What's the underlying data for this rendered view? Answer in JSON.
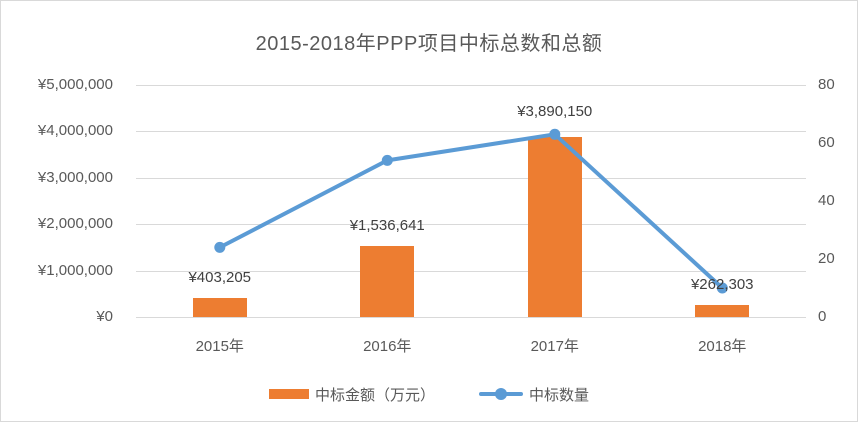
{
  "title": "2015-2018年PPP项目中标总数和总额",
  "chart_data": {
    "type": "combo",
    "categories": [
      "2015年",
      "2016年",
      "2017年",
      "2018年"
    ],
    "series": [
      {
        "name": "中标金额（万元）",
        "type": "bar",
        "axis": "left",
        "color": "#ED7D31",
        "values": [
          403205,
          1536641,
          3890150,
          262303
        ],
        "data_labels": [
          "¥403,205",
          "¥1,536,641",
          "¥3,890,150",
          "¥262,303"
        ]
      },
      {
        "name": "中标数量",
        "type": "line",
        "axis": "right",
        "color": "#5B9BD5",
        "values": [
          24,
          54,
          63,
          10
        ]
      }
    ],
    "left_axis": {
      "min": 0,
      "max": 5000000,
      "tick_labels": [
        "¥5,000,000",
        "¥4,000,000",
        "¥3,000,000",
        "¥2,000,000",
        "¥1,000,000",
        "¥0"
      ]
    },
    "right_axis": {
      "min": 0,
      "max": 80,
      "tick_labels": [
        "80",
        "60",
        "40",
        "20",
        "0"
      ]
    },
    "grid": true,
    "legend_position": "bottom"
  },
  "colors": {
    "bar": "#ED7D31",
    "line": "#5B9BD5",
    "gridline": "#D9D9D9",
    "axis_text": "#595959",
    "data_label_text": "#404040",
    "title_text": "#595959",
    "border": "#D9D9D9",
    "background": "#FFFFFF"
  }
}
